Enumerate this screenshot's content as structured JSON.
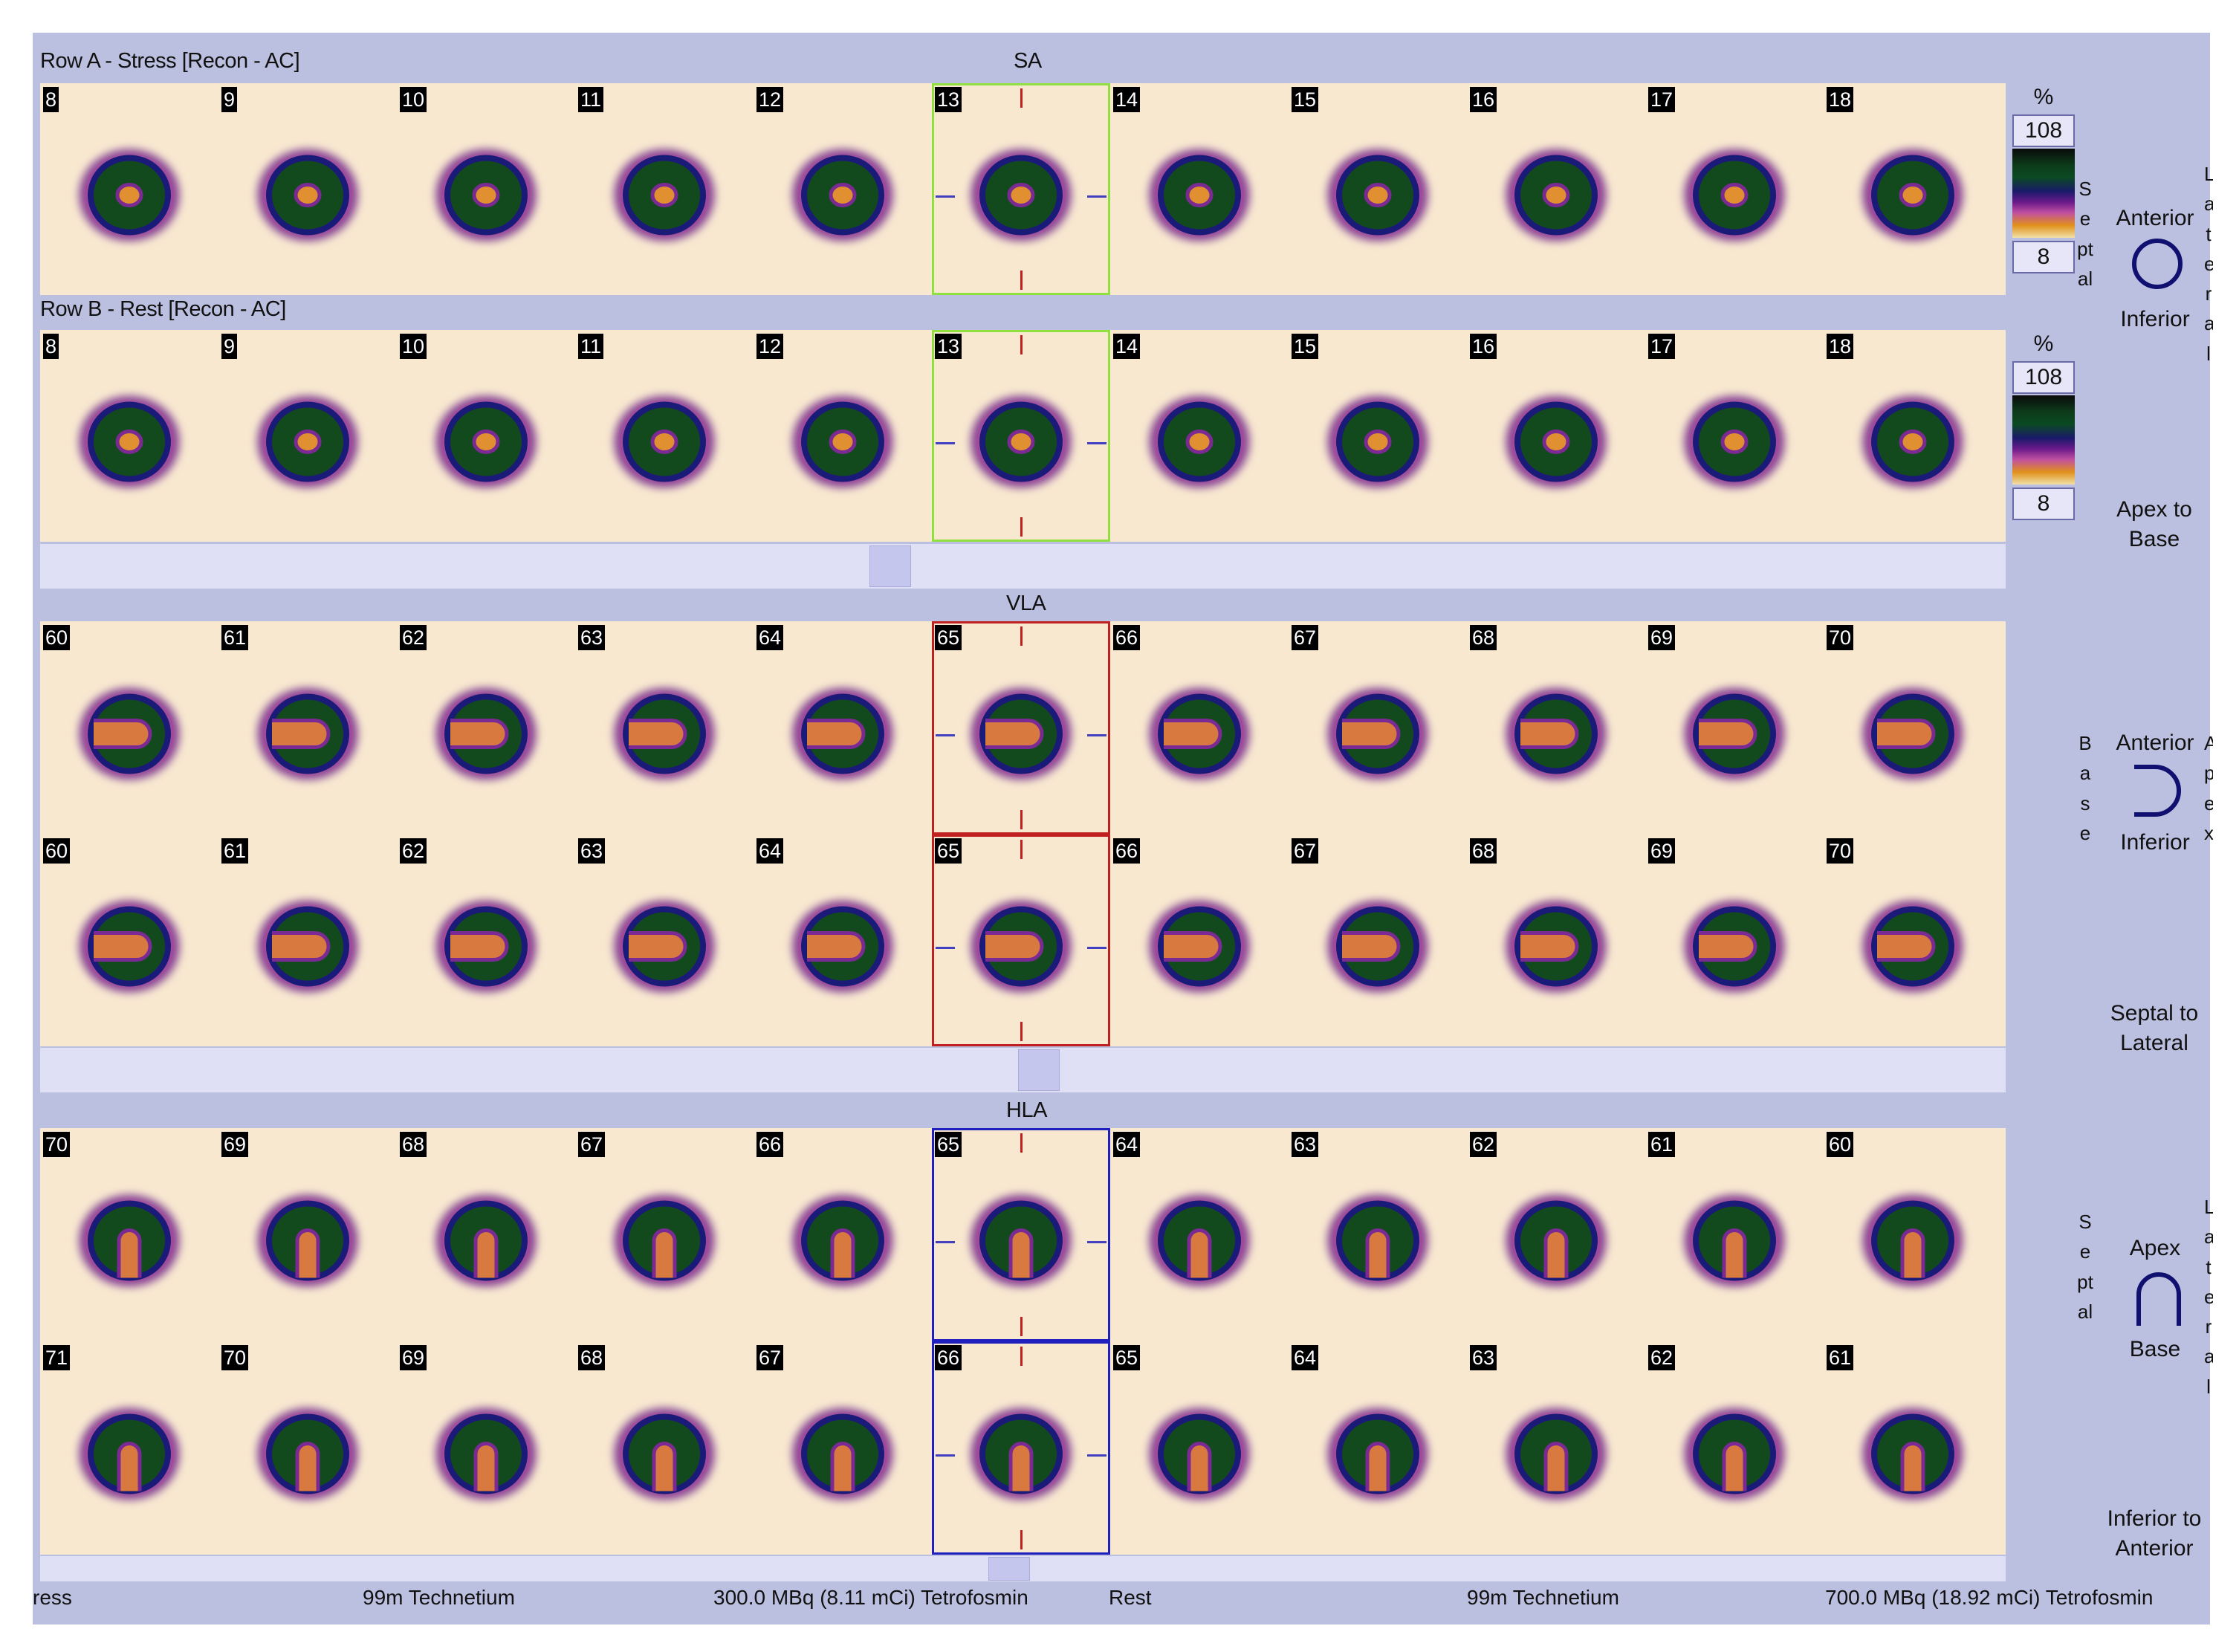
{
  "sa": {
    "section_label": "SA",
    "row_a_label": "Row A - Stress [Recon - AC]",
    "row_b_label": "Row B - Rest [Recon - AC]",
    "row_a_slices": [
      "8",
      "9",
      "10",
      "11",
      "12",
      "13",
      "14",
      "15",
      "16",
      "17",
      "18"
    ],
    "row_b_slices": [
      "8",
      "9",
      "10",
      "11",
      "12",
      "13",
      "14",
      "15",
      "16",
      "17",
      "18"
    ]
  },
  "vla": {
    "section_label": "VLA",
    "row_a_slices": [
      "60",
      "61",
      "62",
      "63",
      "64",
      "65",
      "66",
      "67",
      "68",
      "69",
      "70"
    ],
    "row_b_slices": [
      "60",
      "61",
      "62",
      "63",
      "64",
      "65",
      "66",
      "67",
      "68",
      "69",
      "70"
    ]
  },
  "hla": {
    "section_label": "HLA",
    "row_a_slices": [
      "70",
      "69",
      "68",
      "67",
      "66",
      "65",
      "64",
      "63",
      "62",
      "61",
      "60"
    ],
    "row_b_slices": [
      "71",
      "70",
      "69",
      "68",
      "67",
      "66",
      "65",
      "64",
      "63",
      "62",
      "61"
    ]
  },
  "scale_a": {
    "unit": "%",
    "max": "108",
    "min": "8"
  },
  "scale_b": {
    "unit": "%",
    "max": "108",
    "min": "8"
  },
  "orientation": {
    "sa": {
      "top": "Anterior",
      "bottom": "Inferior",
      "left_vertical": "Septal",
      "right_vertical": "Lateral",
      "direction": "Apex to Base"
    },
    "vla": {
      "top": "Anterior",
      "bottom": "Inferior",
      "left_vertical": "Base",
      "right_vertical": "Apex",
      "direction": "Septal to Lateral"
    },
    "hla": {
      "top": "Apex",
      "bottom": "Base",
      "left_vertical": "Septal",
      "right_vertical": "Lateral",
      "direction": "Inferior to Anterior"
    }
  },
  "footer": {
    "stress_label": "ress",
    "stress_isotope": "99m Technetium",
    "stress_dose": "300.0 MBq (8.11 mCi) Tetrofosmin",
    "rest_label": "Rest",
    "rest_isotope": "99m Technetium",
    "rest_dose": "700.0 MBq (18.92 mCi) Tetrofosmin"
  },
  "colors": {
    "background": "#bcc0e0",
    "panel": "#f8e8d0",
    "sa_highlight": "#90e040",
    "vla_highlight": "#c02020",
    "hla_highlight": "#2020c0",
    "scrollbar": "#dfe0f5"
  },
  "icons": {
    "sa": "circle-icon",
    "vla": "cup-right-icon",
    "hla": "arch-icon"
  }
}
